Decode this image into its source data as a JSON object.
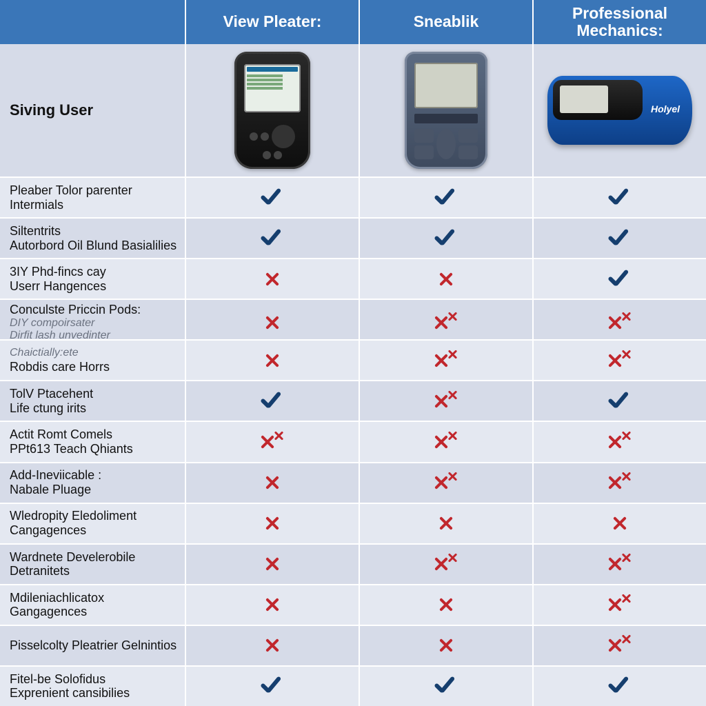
{
  "type": "table",
  "background_color": "#d6dbe8",
  "grid_color": "#ffffff",
  "header": {
    "bg": "#3a76b8",
    "fg": "#ffffff",
    "fontsize": 23,
    "cols": [
      "View Pleater:",
      "Sneablik",
      "Professional Mechanics:"
    ]
  },
  "row_label": "Siving User",
  "devices": {
    "d1": {
      "color": "#1a1a1a",
      "screen": "#e8efe8"
    },
    "d2": {
      "color": "#4a5a72",
      "screen": "#cfd2c6"
    },
    "d3": {
      "color_base": "#1e67c7",
      "color_top": "#1a1a1a",
      "logo": "Holyel"
    }
  },
  "check_color": "#153e6e",
  "cross_color": "#c1272d",
  "alt_row_colors": [
    "#e4e8f1",
    "#d6dbe8"
  ],
  "label_fontsize": 18,
  "features": [
    {
      "label": "Pleaber Tolor parenter Intermials",
      "v": [
        "c",
        "c",
        "c"
      ]
    },
    {
      "label": "Siltentrits\nAutorbord Oil Blund Basialilies",
      "v": [
        "c",
        "c",
        "c"
      ]
    },
    {
      "label": "3IY Phd-fincs cay\nUserr Hangences",
      "v": [
        "x",
        "x",
        "c"
      ]
    },
    {
      "label": "Conculste Priccin Pods:",
      "sub": "DIY compoirsater\nDirfit lash unvedinter",
      "v": [
        "x",
        "xx",
        "xx"
      ]
    },
    {
      "label": "Robdis care Horrs",
      "sub_above": "Chaictially:ete",
      "v": [
        "x",
        "xx",
        "xx"
      ]
    },
    {
      "label": "TolV Ptacehent\nLife ctung irits",
      "v": [
        "c",
        "xx",
        "c"
      ]
    },
    {
      "label": "Actit Romt Comels\nPPt613 Teach Qhiants",
      "v": [
        "xx",
        "xx",
        "xx"
      ]
    },
    {
      "label": "Add-Ineviicable :\nNabale Pluage",
      "v": [
        "x",
        "xx",
        "xx"
      ]
    },
    {
      "label": "Wledropity Eledoliment Cangagences",
      "v": [
        "x",
        "x",
        "x"
      ]
    },
    {
      "label": "Wardnete Develerobile Detranitets",
      "v": [
        "x",
        "xx",
        "xx"
      ]
    },
    {
      "label": "Mdileniachlicatox Gangagences",
      "v": [
        "x",
        "x",
        "xx"
      ]
    },
    {
      "label": "Pisselcolty Pleatrier Gelnintios",
      "v": [
        "x",
        "x",
        "xx"
      ]
    },
    {
      "label": "Fitel-be Solofidus\nExprenient cansibilies",
      "v": [
        "c",
        "c",
        "c"
      ]
    }
  ]
}
